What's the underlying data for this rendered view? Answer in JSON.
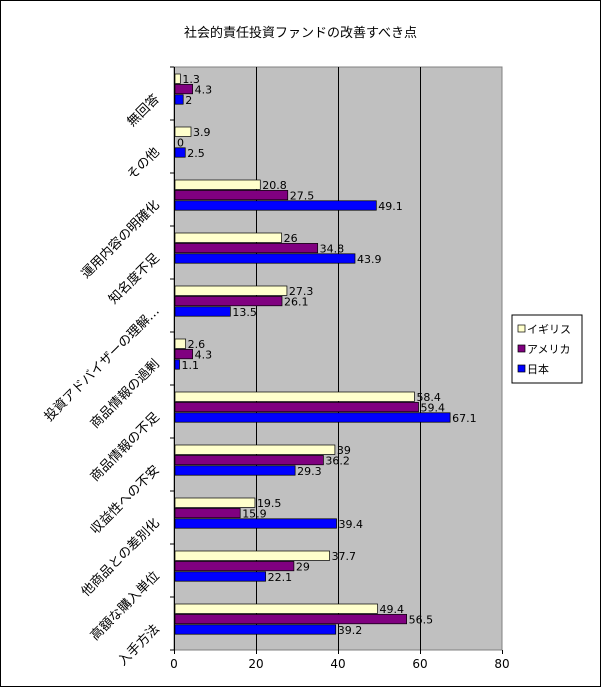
{
  "chart_data": {
    "type": "bar",
    "orientation": "horizontal",
    "title": "社会的責任投資ファンドの改善すべき点",
    "xlabel": "",
    "ylabel": "",
    "xlim": [
      0,
      80
    ],
    "xticks": [
      0,
      20,
      40,
      60,
      80
    ],
    "grid": true,
    "legend_position": "right",
    "categories": [
      "無回答",
      "その他",
      "運用内容の明確化",
      "知名度不足",
      "投資アドバイザーの理解…",
      "商品情報の過剰",
      "商品情報の不足",
      "収益性への不安",
      "他商品との差別化",
      "高額な購入単位",
      "入手方法"
    ],
    "series": [
      {
        "name": "イギリス",
        "color": "#ffffcc",
        "values": [
          1.3,
          3.9,
          20.8,
          26,
          27.3,
          2.6,
          58.4,
          39,
          19.5,
          37.7,
          49.4
        ]
      },
      {
        "name": "アメリカ",
        "color": "#800080",
        "values": [
          4.3,
          0,
          27.5,
          34.8,
          26.1,
          4.3,
          59.4,
          36.2,
          15.9,
          29,
          56.5
        ]
      },
      {
        "name": "日本",
        "color": "#0000ff",
        "values": [
          2,
          2.5,
          49.1,
          43.9,
          13.5,
          1.1,
          67.1,
          29.3,
          39.4,
          22.1,
          39.2
        ]
      }
    ],
    "plot_background": "#c0c0c0"
  }
}
